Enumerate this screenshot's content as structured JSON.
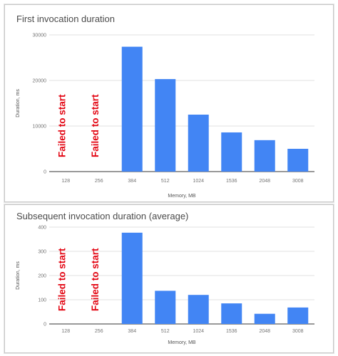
{
  "chart_data": [
    {
      "type": "bar",
      "title": "First invocation duration",
      "xlabel": "Memory, MB",
      "ylabel": "Duration, ms",
      "categories": [
        "128",
        "256",
        "384",
        "512",
        "1024",
        "1536",
        "2048",
        "3008"
      ],
      "values": [
        null,
        null,
        27400,
        20300,
        12500,
        8600,
        6900,
        5000
      ],
      "ylim": [
        0,
        30000
      ],
      "yticks": [
        "0",
        "10000",
        "20000",
        "30000"
      ],
      "annotations": [
        "Failed to start",
        "Failed to start"
      ],
      "grid": true,
      "color": "#4285f4",
      "annotation_color": "#e30613"
    },
    {
      "type": "bar",
      "title": "Subsequent invocation duration (average)",
      "xlabel": "Memory, MB",
      "ylabel": "Duration, ms",
      "categories": [
        "128",
        "256",
        "384",
        "512",
        "1024",
        "1536",
        "2048",
        "3008"
      ],
      "values": [
        null,
        null,
        377,
        137,
        120,
        85,
        42,
        68
      ],
      "ylim": [
        0,
        400
      ],
      "yticks": [
        "0",
        "100",
        "200",
        "300",
        "400"
      ],
      "annotations": [
        "Failed to start",
        "Failed to start"
      ],
      "grid": true,
      "color": "#4285f4",
      "annotation_color": "#e30613"
    }
  ]
}
